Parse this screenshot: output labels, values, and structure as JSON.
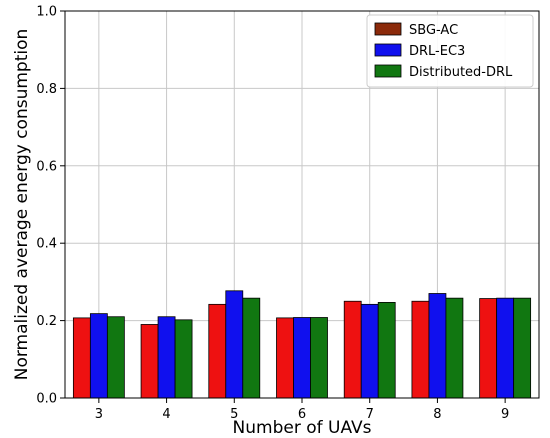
{
  "chart_data": {
    "type": "bar",
    "categories": [
      "3",
      "4",
      "5",
      "6",
      "7",
      "8",
      "9"
    ],
    "series": [
      {
        "name": "SBG-AC",
        "values": [
          0.207,
          0.19,
          0.242,
          0.207,
          0.25,
          0.25,
          0.257
        ],
        "color": "#ee1111",
        "legend_color": "#8b2a0a"
      },
      {
        "name": "DRL-EC3",
        "values": [
          0.218,
          0.21,
          0.277,
          0.208,
          0.242,
          0.27,
          0.258
        ],
        "color": "#1010ee",
        "legend_color": "#1010ee"
      },
      {
        "name": "Distributed-DRL",
        "values": [
          0.21,
          0.202,
          0.258,
          0.208,
          0.247,
          0.258,
          0.258
        ],
        "color": "#117711",
        "legend_color": "#117711"
      }
    ],
    "xlabel": "Number of UAVs",
    "ylabel": "Normalized average energy consumption",
    "ylim": [
      0,
      1.0
    ],
    "yticks": [
      "0.0",
      "0.2",
      "0.4",
      "0.6",
      "0.8",
      "1.0"
    ],
    "grid": true,
    "legend_position": "top-right"
  }
}
